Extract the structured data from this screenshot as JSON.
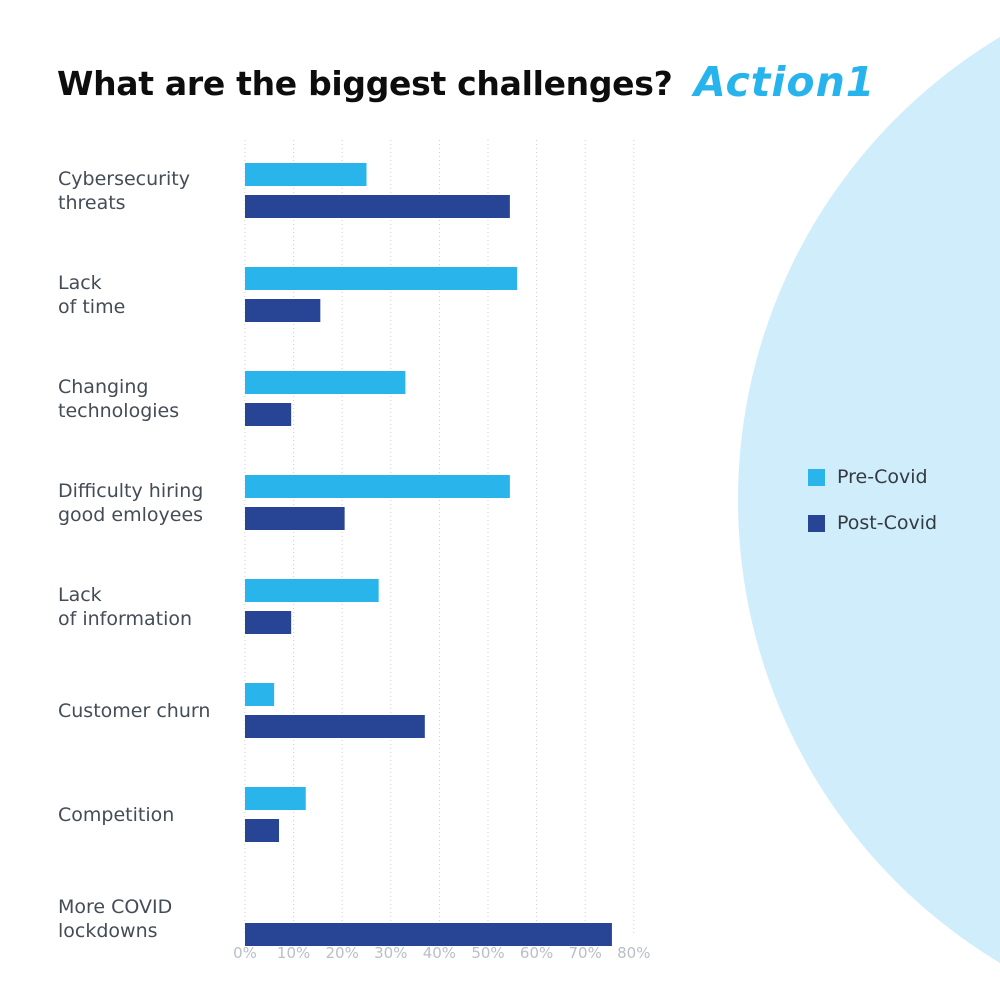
{
  "title": "What are the biggest challenges?",
  "logo": "Action1",
  "colors": {
    "pre": "#29b4ec",
    "post": "#284595",
    "background_circle": "#cfedfb",
    "grid": "#c9ced3"
  },
  "chart_data": {
    "type": "bar",
    "orientation": "horizontal",
    "title": "What are the biggest challenges?",
    "categories": [
      "Cybersecurity\nthreats",
      "Lack\nof time",
      "Changing\ntechnologies",
      "Difficulty hiring\ngood emloyees",
      "Lack\nof information",
      "Customer churn",
      "Competition",
      "More COVID\nlockdowns"
    ],
    "series": [
      {
        "name": "Pre-Covid",
        "values": [
          25,
          56,
          33,
          54.5,
          27.5,
          6,
          12.5,
          0
        ]
      },
      {
        "name": "Post-Covid",
        "values": [
          54.5,
          15.5,
          9.5,
          20.5,
          9.5,
          37,
          7,
          75.5
        ]
      }
    ],
    "xlim": [
      0,
      80
    ],
    "xticks": [
      "0%",
      "10%",
      "20%",
      "30%",
      "40%",
      "50%",
      "60%",
      "70%",
      "80%"
    ],
    "grid": true,
    "legend_position": "right"
  }
}
